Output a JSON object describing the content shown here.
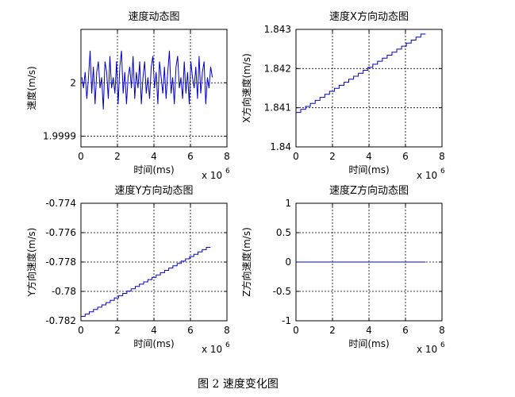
{
  "caption": "图 2 速度变化图",
  "chart_data": [
    {
      "type": "line",
      "title": "速度动态图",
      "xlabel": "时间(ms)",
      "ylabel": "速度(m/s)",
      "x_exponent_label": "x 10",
      "x_exponent": "6",
      "xlim": [
        0,
        8
      ],
      "ylim": [
        1.99988,
        2.0001
      ],
      "xticks": [
        "0",
        "2",
        "4",
        "6",
        "8"
      ],
      "yticks": [
        {
          "v": 2.0,
          "label": "2"
        },
        {
          "v": 1.9999,
          "label": "1.9999"
        }
      ],
      "grid": true,
      "color": "#0000cc",
      "series": [
        {
          "x_start": 0.05,
          "x_end": 7.2,
          "values": [
            2.00001,
            1.99999,
            2.00002,
            1.99997,
            2.00001,
            2.00006,
            1.99998,
            2.00003,
            1.99996,
            2.00002,
            2.00004,
            1.99999,
            2.00001,
            1.99995,
            2.00004,
            2.00002,
            1.99997,
            2.00005,
            1.99999,
            2.00001,
            1.99998,
            2.00004,
            1.99996,
            2.00003,
            2.00006,
            1.99998,
            2.00002,
            1.99996,
            2.00001,
            2.00003,
            1.99999,
            2.00005,
            1.99997,
            2.00002,
            1.99999,
            2.00004,
            1.99996,
            2.00001,
            2.00004,
            1.99998,
            2.00001,
            1.99997,
            2.00003,
            2.00005,
            1.99999,
            2.00002,
            1.99996,
            2.00004,
            2.00001,
            1.99998,
            2.00003,
            1.99997,
            2.00002,
            2.00006,
            1.99998,
            2.00001,
            1.99996,
            2.00003,
            2.00005,
            1.99999,
            2.00001,
            1.99997,
            2.00004,
            1.99998,
            2.00002,
            1.99996,
            2.00004,
            2.00001,
            1.99999,
            2.00003,
            1.99997,
            2.00005,
            1.99998,
            2.00002,
            2.00004,
            1.99996,
            2.00001,
            1.99999,
            2.00003,
            2.00001
          ]
        }
      ]
    },
    {
      "type": "line",
      "title": "速度X方向动态图",
      "xlabel": "时间(ms)",
      "ylabel": "X方向速度(m/s)",
      "x_exponent_label": "x 10",
      "x_exponent": "6",
      "xlim": [
        0,
        8
      ],
      "ylim": [
        1.84,
        1.843
      ],
      "xticks": [
        "0",
        "2",
        "4",
        "6",
        "8"
      ],
      "yticks": [
        {
          "v": 1.84,
          "label": "1.84"
        },
        {
          "v": 1.841,
          "label": "1.841"
        },
        {
          "v": 1.842,
          "label": "1.842"
        },
        {
          "v": 1.843,
          "label": "1.843"
        }
      ],
      "grid": true,
      "color": "#0000cc",
      "series": [
        {
          "x_start": 0.0,
          "x_end": 7.1,
          "y_start": 1.84088,
          "y_end": 1.84288,
          "steps": 26
        }
      ]
    },
    {
      "type": "line",
      "title": "速度Y方向动态图",
      "xlabel": "时间(ms)",
      "ylabel": "Y方向速度(m/s)",
      "x_exponent_label": "x 10",
      "x_exponent": "6",
      "xlim": [
        0,
        8
      ],
      "ylim": [
        -0.782,
        -0.774
      ],
      "xticks": [
        "0",
        "2",
        "4",
        "6",
        "8"
      ],
      "yticks": [
        {
          "v": -0.774,
          "label": "-0.774"
        },
        {
          "v": -0.776,
          "label": "-0.776"
        },
        {
          "v": -0.778,
          "label": "-0.778"
        },
        {
          "v": -0.78,
          "label": "-0.78"
        },
        {
          "v": -0.782,
          "label": "-0.782"
        }
      ],
      "grid": true,
      "color": "#0000cc",
      "series": [
        {
          "x_start": 0.0,
          "x_end": 7.1,
          "y_start": -0.7817,
          "y_end": -0.777,
          "steps": 30
        }
      ]
    },
    {
      "type": "line",
      "title": "速度Z方向动态图",
      "xlabel": "时间(ms)",
      "ylabel": "Z方向速度(m/s)",
      "x_exponent_label": "x 10",
      "x_exponent": "6",
      "xlim": [
        0,
        8
      ],
      "ylim": [
        -1,
        1
      ],
      "xticks": [
        "0",
        "2",
        "4",
        "6",
        "8"
      ],
      "yticks": [
        {
          "v": 1,
          "label": "1"
        },
        {
          "v": 0.5,
          "label": "0.5"
        },
        {
          "v": 0,
          "label": "0"
        },
        {
          "v": -0.5,
          "label": "-0.5"
        },
        {
          "v": -1,
          "label": "-1"
        }
      ],
      "grid": true,
      "color": "#0000cc",
      "series": [
        {
          "x_start": 0.0,
          "x_end": 7.1,
          "y_start": 0,
          "y_end": 0,
          "steps": 0
        }
      ]
    }
  ]
}
